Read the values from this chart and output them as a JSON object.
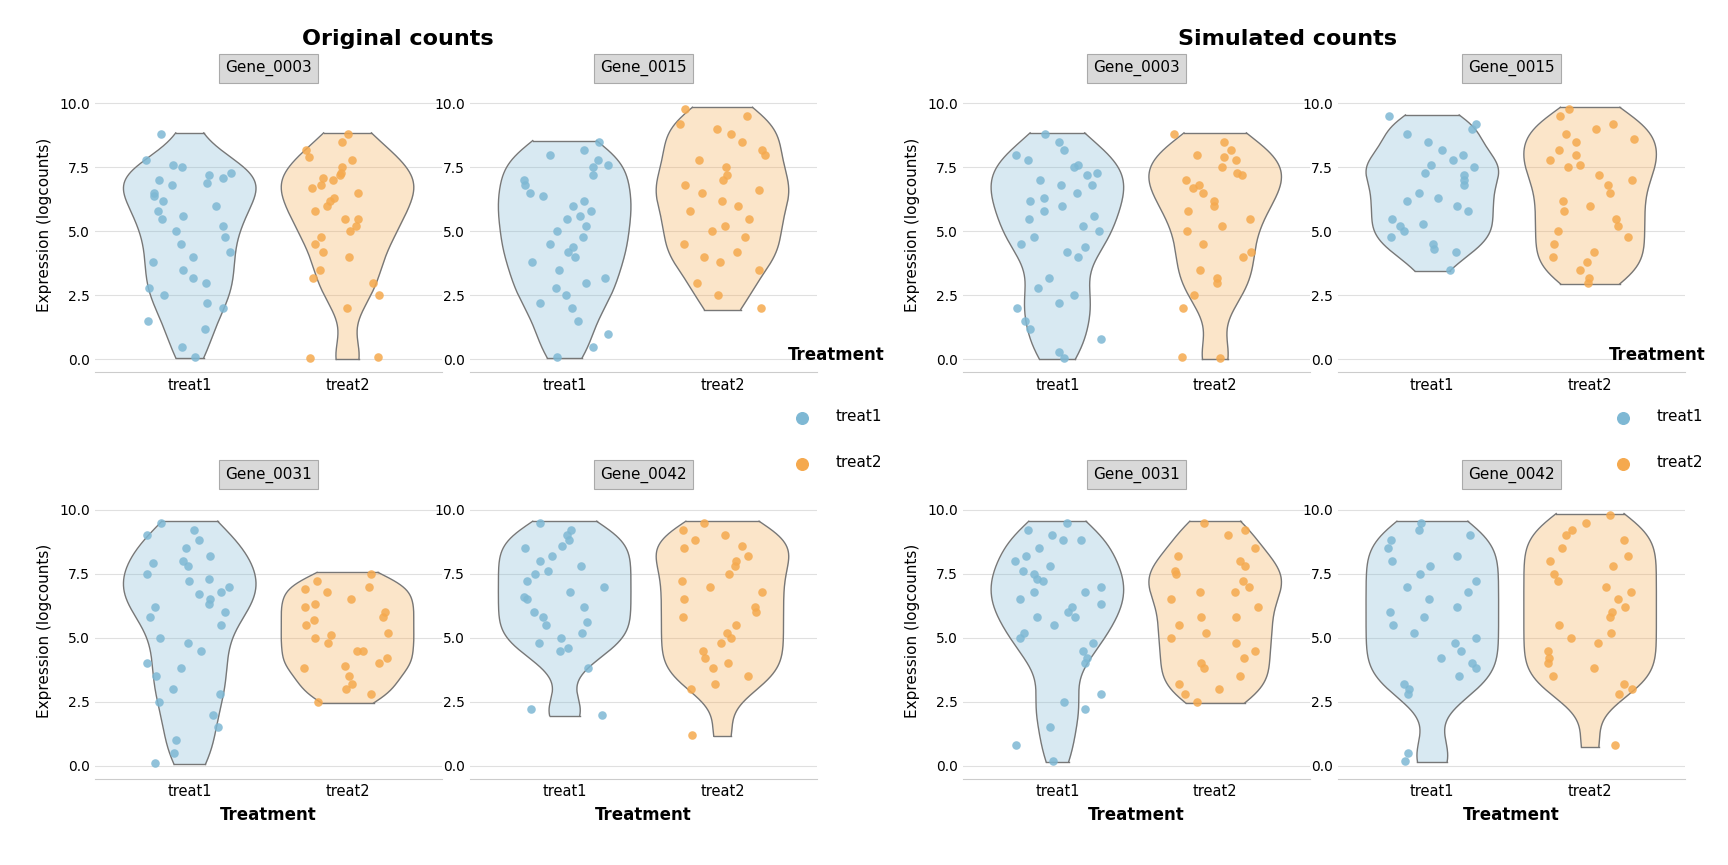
{
  "title_left": "Original counts",
  "title_right": "Simulated counts",
  "ylabel": "Expression (logcounts)",
  "xlabel": "Treatment",
  "legend_title": "Treatment",
  "treat1_label": "treat1",
  "treat2_label": "treat2",
  "color_treat1": "#7EB8D4",
  "color_treat2": "#F5A94E",
  "violin_edge_color": "#777777",
  "background_color": "#ffffff",
  "panel_background": "#ffffff",
  "facet_header_bg": "#d9d9d9",
  "facet_header_edge": "#aaaaaa",
  "grid_color": "#e0e0e0",
  "genes": [
    "Gene_0003",
    "Gene_0015",
    "Gene_0031",
    "Gene_0042"
  ],
  "ylim": [
    -0.5,
    11.0
  ],
  "yticks": [
    0.0,
    2.5,
    5.0,
    7.5,
    10.0
  ],
  "orig": {
    "Gene_0003": {
      "treat1": [
        7.5,
        7.2,
        7.8,
        6.8,
        7.0,
        6.5,
        5.5,
        5.0,
        4.5,
        4.0,
        3.5,
        3.0,
        2.5,
        2.0,
        1.5,
        1.2,
        0.5,
        0.1,
        5.8,
        6.2,
        6.0,
        7.3,
        7.6,
        6.9,
        5.2,
        4.8,
        3.8,
        2.8,
        8.8,
        7.1,
        6.4,
        5.6,
        4.2,
        3.2,
        2.2
      ],
      "treat2": [
        8.5,
        8.2,
        7.8,
        7.5,
        7.2,
        7.0,
        6.8,
        6.5,
        6.2,
        6.0,
        5.5,
        5.0,
        4.5,
        4.0,
        3.5,
        3.0,
        2.5,
        2.0,
        0.1,
        0.05,
        8.8,
        7.9,
        7.3,
        6.7,
        5.8,
        5.2,
        4.2,
        3.2,
        7.1,
        6.3,
        5.5,
        4.8
      ]
    },
    "Gene_0015": {
      "treat1": [
        8.5,
        8.0,
        7.5,
        7.0,
        6.5,
        6.0,
        5.5,
        5.0,
        4.5,
        4.0,
        3.5,
        3.0,
        2.5,
        2.0,
        1.5,
        1.0,
        0.5,
        0.1,
        7.8,
        7.2,
        6.8,
        6.2,
        5.8,
        5.2,
        4.8,
        4.2,
        3.8,
        3.2,
        2.8,
        2.2,
        8.2,
        7.6,
        6.4,
        5.6,
        4.4
      ],
      "treat2": [
        9.8,
        9.5,
        9.0,
        8.5,
        8.0,
        7.5,
        7.0,
        6.8,
        6.5,
        6.2,
        6.0,
        5.5,
        5.0,
        4.5,
        4.0,
        3.5,
        3.0,
        2.5,
        2.0,
        9.2,
        8.8,
        8.2,
        7.8,
        7.2,
        6.6,
        5.8,
        5.2,
        4.8,
        4.2,
        3.8
      ]
    },
    "Gene_0031": {
      "treat1": [
        9.5,
        9.0,
        8.5,
        8.2,
        8.0,
        7.8,
        7.5,
        7.2,
        7.0,
        6.8,
        6.5,
        6.2,
        6.0,
        5.5,
        5.0,
        4.5,
        4.0,
        3.5,
        3.0,
        2.5,
        2.0,
        1.5,
        1.0,
        0.5,
        0.1,
        7.9,
        7.3,
        6.7,
        5.8,
        4.8,
        3.8,
        2.8,
        6.3,
        8.8,
        9.2
      ],
      "treat2": [
        7.2,
        7.0,
        6.8,
        6.5,
        6.2,
        6.0,
        5.8,
        5.5,
        5.2,
        5.0,
        4.8,
        4.5,
        4.2,
        4.0,
        3.8,
        3.5,
        3.2,
        3.0,
        2.8,
        2.5,
        7.5,
        6.9,
        6.3,
        5.7,
        5.1,
        4.5,
        3.9
      ]
    },
    "Gene_0042": {
      "treat1": [
        9.5,
        9.0,
        8.8,
        8.5,
        8.2,
        8.0,
        7.8,
        7.5,
        7.2,
        7.0,
        6.8,
        6.5,
        6.2,
        6.0,
        5.8,
        5.5,
        5.2,
        5.0,
        4.8,
        4.5,
        2.2,
        2.0,
        9.2,
        8.6,
        7.6,
        6.6,
        5.6,
        4.6,
        3.8
      ],
      "treat2": [
        9.5,
        9.0,
        8.8,
        8.5,
        8.2,
        8.0,
        7.8,
        7.5,
        7.2,
        7.0,
        6.8,
        6.5,
        6.2,
        6.0,
        5.8,
        5.5,
        5.2,
        5.0,
        4.8,
        4.5,
        4.2,
        4.0,
        3.8,
        3.5,
        3.2,
        3.0,
        1.2,
        9.2,
        8.6
      ]
    }
  },
  "sim": {
    "Gene_0003": {
      "treat1": [
        8.5,
        8.2,
        8.0,
        7.8,
        7.5,
        7.2,
        7.0,
        6.8,
        6.5,
        6.2,
        6.0,
        5.8,
        5.5,
        5.2,
        5.0,
        4.8,
        4.5,
        4.2,
        4.0,
        2.8,
        2.5,
        2.2,
        2.0,
        1.5,
        1.2,
        0.8,
        0.3,
        0.05,
        7.6,
        6.8,
        5.6,
        4.4,
        3.2,
        8.8,
        7.3,
        6.3
      ],
      "treat2": [
        8.5,
        8.2,
        8.0,
        7.8,
        7.5,
        7.2,
        7.0,
        6.8,
        6.5,
        6.2,
        6.0,
        5.5,
        5.0,
        4.5,
        4.0,
        3.5,
        3.0,
        2.5,
        2.0,
        0.1,
        0.05,
        8.8,
        7.9,
        7.3,
        6.7,
        5.8,
        5.2,
        4.2,
        3.2
      ]
    },
    "Gene_0015": {
      "treat1": [
        9.5,
        9.0,
        8.5,
        8.2,
        8.0,
        7.8,
        7.5,
        7.2,
        7.0,
        6.8,
        6.5,
        6.2,
        6.0,
        5.8,
        5.5,
        5.2,
        5.0,
        4.8,
        4.5,
        4.2,
        7.6,
        8.8,
        7.3,
        6.3,
        5.3,
        4.3,
        3.5,
        9.2
      ],
      "treat2": [
        9.5,
        9.2,
        9.0,
        8.8,
        8.5,
        8.2,
        8.0,
        7.8,
        7.5,
        7.2,
        7.0,
        6.8,
        6.5,
        6.2,
        6.0,
        5.8,
        5.5,
        5.2,
        5.0,
        4.8,
        4.5,
        4.2,
        4.0,
        3.8,
        3.5,
        3.2,
        3.0,
        9.8,
        8.6,
        7.6
      ]
    },
    "Gene_0031": {
      "treat1": [
        9.5,
        9.2,
        9.0,
        8.8,
        8.5,
        8.2,
        8.0,
        7.8,
        7.5,
        7.2,
        7.0,
        6.8,
        6.5,
        6.2,
        6.0,
        5.8,
        5.5,
        5.2,
        5.0,
        4.8,
        4.5,
        4.2,
        4.0,
        2.8,
        2.5,
        2.2,
        1.5,
        0.8,
        0.2,
        7.6,
        6.8,
        5.8,
        8.8,
        7.3,
        6.3
      ],
      "treat2": [
        9.5,
        9.0,
        8.5,
        8.2,
        8.0,
        7.8,
        7.5,
        7.2,
        7.0,
        6.8,
        6.5,
        6.2,
        5.8,
        5.5,
        5.2,
        5.0,
        4.8,
        4.5,
        4.2,
        4.0,
        3.8,
        3.5,
        3.2,
        3.0,
        2.8,
        2.5,
        7.6,
        6.8,
        5.8,
        9.2
      ]
    },
    "Gene_0042": {
      "treat1": [
        9.5,
        9.2,
        9.0,
        8.8,
        8.5,
        8.2,
        8.0,
        7.8,
        7.5,
        7.2,
        7.0,
        6.8,
        6.5,
        6.2,
        6.0,
        5.8,
        5.5,
        5.2,
        5.0,
        4.8,
        4.5,
        4.2,
        4.0,
        3.8,
        3.5,
        3.2,
        3.0,
        2.8,
        0.5,
        0.2
      ],
      "treat2": [
        9.5,
        9.2,
        9.0,
        8.8,
        8.5,
        8.2,
        8.0,
        7.8,
        7.5,
        7.2,
        7.0,
        6.8,
        6.5,
        6.2,
        6.0,
        5.8,
        5.5,
        5.2,
        5.0,
        4.8,
        4.5,
        4.2,
        4.0,
        3.8,
        3.5,
        3.2,
        3.0,
        2.8,
        0.8,
        9.8
      ]
    }
  }
}
